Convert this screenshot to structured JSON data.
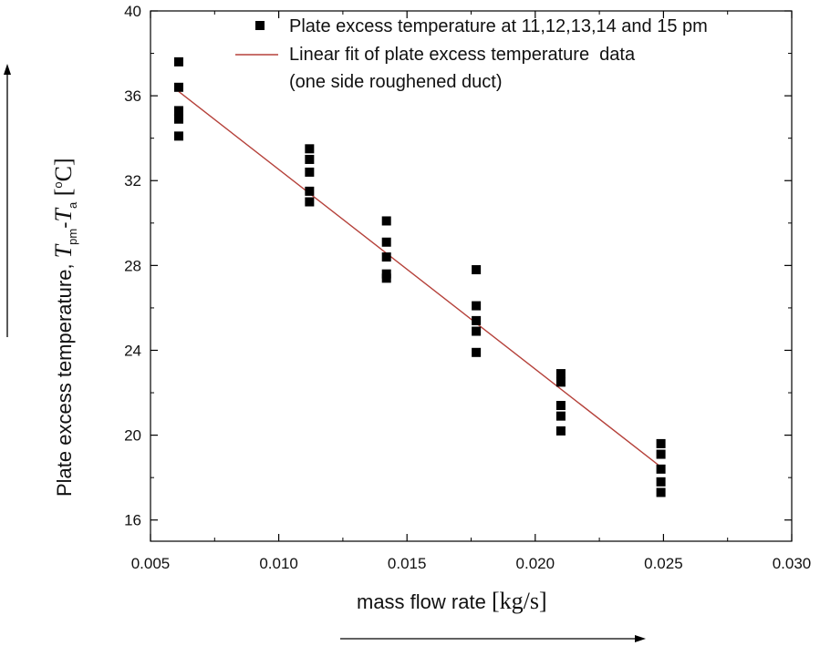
{
  "chart_data": {
    "type": "scatter",
    "xlabel": "mass flow rate [kg/s]",
    "xlabel_parts": {
      "main": "mass flow rate ",
      "unit": "[kg/s]"
    },
    "ylabel": "Plate excess temperature, Tpm-Ta [°C]",
    "ylabel_parts": {
      "main": "Plate excess temperature, ",
      "var1": "T",
      "sub1": "pm",
      "dash": "-",
      "var2": "T",
      "sub2": "a",
      "unit_open": " [",
      "unit_sup": "o",
      "unit_main": "C]"
    },
    "xlim": [
      0.005,
      0.03
    ],
    "ylim": [
      15,
      40
    ],
    "x_ticks": [
      0.005,
      0.01,
      0.015,
      0.02,
      0.025,
      0.03
    ],
    "x_tick_labels": [
      "0.005",
      "0.010",
      "0.015",
      "0.020",
      "0.025",
      "0.030"
    ],
    "y_ticks": [
      16,
      20,
      24,
      28,
      32,
      36,
      40
    ],
    "y_tick_labels": [
      "16",
      "20",
      "24",
      "28",
      "32",
      "36",
      "40"
    ],
    "grid": false,
    "legend_position": "top-right",
    "series": [
      {
        "name": "Plate excess temperature at 11,12,13,14 and 15 pm",
        "kind": "scatter",
        "marker": "square",
        "color": "#000000",
        "points": [
          {
            "x": 0.0061,
            "y": 37.6
          },
          {
            "x": 0.0061,
            "y": 36.4
          },
          {
            "x": 0.0061,
            "y": 35.3
          },
          {
            "x": 0.0061,
            "y": 34.9
          },
          {
            "x": 0.0061,
            "y": 34.1
          },
          {
            "x": 0.0112,
            "y": 33.5
          },
          {
            "x": 0.0112,
            "y": 33.0
          },
          {
            "x": 0.0112,
            "y": 32.4
          },
          {
            "x": 0.0112,
            "y": 31.5
          },
          {
            "x": 0.0112,
            "y": 31.0
          },
          {
            "x": 0.0142,
            "y": 30.1
          },
          {
            "x": 0.0142,
            "y": 29.1
          },
          {
            "x": 0.0142,
            "y": 28.4
          },
          {
            "x": 0.0142,
            "y": 27.6
          },
          {
            "x": 0.0142,
            "y": 27.4
          },
          {
            "x": 0.0177,
            "y": 27.8
          },
          {
            "x": 0.0177,
            "y": 26.1
          },
          {
            "x": 0.0177,
            "y": 25.4
          },
          {
            "x": 0.0177,
            "y": 24.9
          },
          {
            "x": 0.0177,
            "y": 23.9
          },
          {
            "x": 0.021,
            "y": 22.9
          },
          {
            "x": 0.021,
            "y": 22.5
          },
          {
            "x": 0.021,
            "y": 21.4
          },
          {
            "x": 0.021,
            "y": 20.9
          },
          {
            "x": 0.021,
            "y": 20.2
          },
          {
            "x": 0.0249,
            "y": 19.6
          },
          {
            "x": 0.0249,
            "y": 19.1
          },
          {
            "x": 0.0249,
            "y": 18.4
          },
          {
            "x": 0.0249,
            "y": 17.8
          },
          {
            "x": 0.0249,
            "y": 17.3
          }
        ]
      },
      {
        "name": "Linear fit of plate excess temperature  data",
        "name_line2": "(one side roughened duct)",
        "kind": "line",
        "color": "#b5413a",
        "points": [
          {
            "x": 0.0061,
            "y": 36.2
          },
          {
            "x": 0.0249,
            "y": 18.5
          }
        ]
      }
    ]
  }
}
